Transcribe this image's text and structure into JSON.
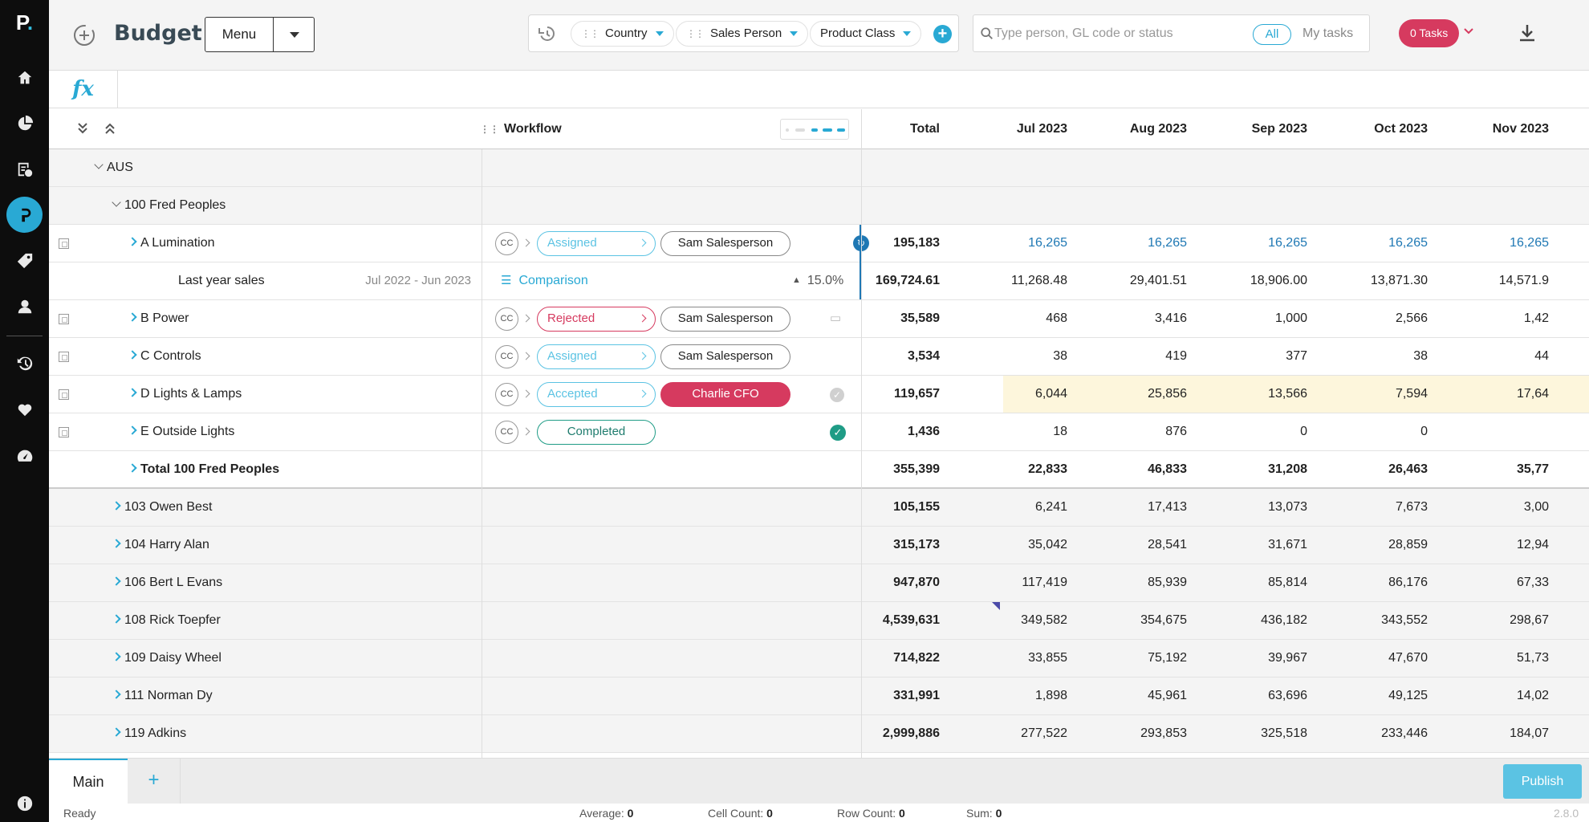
{
  "app": {
    "logo": "P",
    "title": "Budget",
    "menu_label": "Menu"
  },
  "sidebar": {
    "icons": [
      "home-icon",
      "pie-chart-icon",
      "budget-icon",
      "workflow-icon",
      "tag-icon",
      "person-icon",
      "history-icon",
      "heart-icon",
      "gauge-icon",
      "info-icon"
    ],
    "active": "workflow-icon",
    "accent": "#29a9d4"
  },
  "filters": {
    "chips": [
      "Country",
      "Sales Person",
      "Product Class"
    ]
  },
  "search": {
    "placeholder": "Type person, GL code or status",
    "all_label": "All",
    "my_tasks_label": "My tasks"
  },
  "tasks_label": "0 Tasks",
  "fx_label": "fx",
  "grid": {
    "workflow_header": "Workflow",
    "columns": [
      "Total",
      "Jul 2023",
      "Aug 2023",
      "Sep 2023",
      "Oct 2023",
      "Nov 2023"
    ],
    "rows": [
      {
        "type": "group",
        "indent": 0,
        "label": "AUS",
        "cells": []
      },
      {
        "type": "group",
        "indent": 1,
        "label": "100  Fred Peoples",
        "cells": []
      },
      {
        "type": "item",
        "label": "A  Lumination",
        "status": "Assigned",
        "person": "Sam Salesperson",
        "cells": [
          "195,183",
          "16,265",
          "16,265",
          "16,265",
          "16,265",
          "16,265"
        ]
      },
      {
        "type": "comparison",
        "label": "Last year sales",
        "period": "Jul 2022 - Jun 2023",
        "comp_label": "Comparison",
        "pct": "15.0%",
        "cells": [
          "169,724.61",
          "11,268.48",
          "29,401.51",
          "18,906.00",
          "13,871.30",
          "14,571.9"
        ]
      },
      {
        "type": "item",
        "label": "B  Power",
        "status": "Rejected",
        "person": "Sam Salesperson",
        "cells": [
          "35,589",
          "468",
          "3,416",
          "1,000",
          "2,566",
          "1,42"
        ]
      },
      {
        "type": "item",
        "label": "C  Controls",
        "status": "Assigned",
        "person": "Sam Salesperson",
        "cells": [
          "3,534",
          "38",
          "419",
          "377",
          "38",
          "44"
        ]
      },
      {
        "type": "item",
        "label": "D  Lights & Lamps",
        "status": "Accepted",
        "person": "Charlie CFO",
        "cells": [
          "119,657",
          "6,044",
          "25,856",
          "13,566",
          "7,594",
          "17,64"
        ]
      },
      {
        "type": "item",
        "label": "E  Outside Lights",
        "status": "Completed",
        "person": "",
        "cells": [
          "1,436",
          "18",
          "876",
          "0",
          "0",
          ""
        ]
      },
      {
        "type": "total",
        "label": "Total 100 Fred Peoples",
        "cells": [
          "355,399",
          "22,833",
          "46,833",
          "31,208",
          "26,463",
          "35,77"
        ]
      },
      {
        "type": "person",
        "label": "103  Owen Best",
        "cells": [
          "105,155",
          "6,241",
          "17,413",
          "13,073",
          "7,673",
          "3,00"
        ]
      },
      {
        "type": "person",
        "label": "104  Harry Alan",
        "cells": [
          "315,173",
          "35,042",
          "28,541",
          "31,671",
          "28,859",
          "12,94"
        ]
      },
      {
        "type": "person",
        "label": "106  Bert L Evans",
        "cells": [
          "947,870",
          "117,419",
          "85,939",
          "85,814",
          "86,176",
          "67,33"
        ]
      },
      {
        "type": "person",
        "label": "108  Rick Toepfer",
        "cells": [
          "4,539,631",
          "349,582",
          "354,675",
          "436,182",
          "343,552",
          "298,67"
        ]
      },
      {
        "type": "person",
        "label": "109  Daisy Wheel",
        "cells": [
          "714,822",
          "33,855",
          "75,192",
          "39,967",
          "47,670",
          "51,73"
        ]
      },
      {
        "type": "person",
        "label": "111  Norman Dy",
        "cells": [
          "331,991",
          "1,898",
          "45,961",
          "63,696",
          "49,125",
          "14,02"
        ]
      },
      {
        "type": "person",
        "label": "119  Adkins",
        "cells": [
          "2,999,886",
          "277,522",
          "293,853",
          "325,518",
          "233,446",
          "184,07"
        ]
      }
    ]
  },
  "status_colors": {
    "Assigned": "#5bc3e3",
    "Rejected": "#d63a5f",
    "Accepted": "#5bc3e3",
    "Completed": "#1f9c86"
  },
  "bottom": {
    "tab_main": "Main",
    "tab_add": "+",
    "publish_label": "Publish"
  },
  "statusbar": {
    "ready": "Ready",
    "average_label": "Average:",
    "average": "0",
    "cell_count_label": "Cell Count:",
    "cell_count": "0",
    "row_count_label": "Row Count:",
    "row_count": "0",
    "sum_label": "Sum:",
    "sum": "0",
    "version": "2.8.0"
  }
}
